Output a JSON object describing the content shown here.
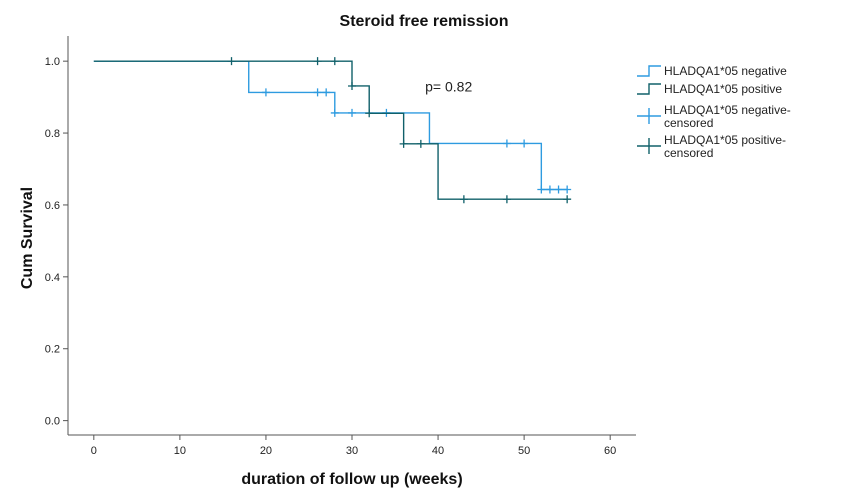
{
  "chart_data": {
    "type": "line",
    "title": "Steroid free remission",
    "xlabel": "duration of follow up (weeks)",
    "ylabel": "Cum Survival",
    "xlim": [
      -3,
      63
    ],
    "ylim": [
      -0.04,
      1.07
    ],
    "xticks": [
      0,
      10,
      20,
      30,
      40,
      50,
      60
    ],
    "xtick_labels": [
      "0",
      "10",
      "20",
      "30",
      "40",
      "50",
      "60"
    ],
    "yticks": [
      0.0,
      0.2,
      0.4,
      0.6,
      0.8,
      1.0
    ],
    "ytick_labels": [
      "0.0",
      "0.2",
      "0.4",
      "0.6",
      "0.8",
      "1.0"
    ],
    "grid": false,
    "legend_position": "right",
    "annotation": {
      "text": "p= 0.82",
      "x": 38.5,
      "y": 0.93
    },
    "series": [
      {
        "name": "HLADQA1*05 negative",
        "color": "#2e9be0",
        "steps": [
          [
            0,
            1.0
          ],
          [
            18,
            1.0
          ],
          [
            18,
            0.913
          ],
          [
            28,
            0.913
          ],
          [
            28,
            0.856
          ],
          [
            39,
            0.856
          ],
          [
            39,
            0.771
          ],
          [
            52,
            0.771
          ],
          [
            52,
            0.643
          ],
          [
            55,
            0.643
          ]
        ],
        "censored_label": "HLADQA1*05 negative-censored",
        "censored": [
          [
            20,
            0.913
          ],
          [
            26,
            0.913
          ],
          [
            27,
            0.913
          ],
          [
            28,
            0.856
          ],
          [
            30,
            0.856
          ],
          [
            34,
            0.856
          ],
          [
            48,
            0.771
          ],
          [
            50,
            0.771
          ],
          [
            52,
            0.643
          ],
          [
            53,
            0.643
          ],
          [
            54,
            0.643
          ],
          [
            55,
            0.643
          ]
        ]
      },
      {
        "name": "HLADQA1*05 positive",
        "color": "#10606a",
        "steps": [
          [
            0,
            1.0
          ],
          [
            30,
            1.0
          ],
          [
            30,
            0.931
          ],
          [
            32,
            0.931
          ],
          [
            32,
            0.855
          ],
          [
            36,
            0.855
          ],
          [
            36,
            0.77
          ],
          [
            40,
            0.77
          ],
          [
            40,
            0.616
          ],
          [
            55,
            0.616
          ]
        ],
        "censored_label": "HLADQA1*05 positive-censored",
        "censored": [
          [
            16,
            1.0
          ],
          [
            26,
            1.0
          ],
          [
            28,
            1.0
          ],
          [
            30,
            0.931
          ],
          [
            32,
            0.855
          ],
          [
            36,
            0.77
          ],
          [
            38,
            0.77
          ],
          [
            43,
            0.616
          ],
          [
            48,
            0.616
          ],
          [
            55,
            0.616
          ]
        ]
      }
    ]
  }
}
